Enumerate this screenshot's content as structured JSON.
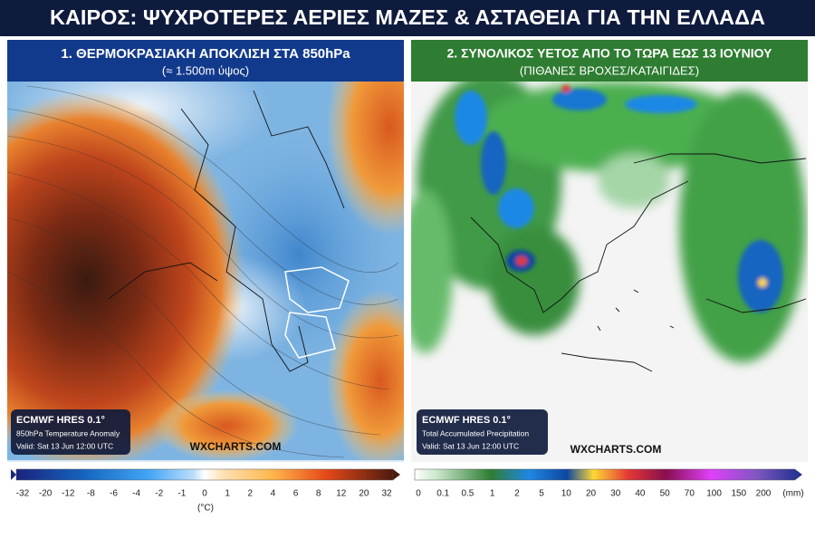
{
  "header": {
    "title": "ΚΑΙΡΟΣ: ΨΥΧΡΟΤΕΡΕΣ ΑΕΡΙΕΣ ΜΑΖΕΣ & ΑΣΤΑΘΕΙΑ ΓΙΑ ΤΗΝ ΕΛΛΑΔΑ"
  },
  "panels": [
    {
      "title": "1. ΘΕΡΜΟΚΡΑΣΙΑΚΗ ΑΠΟΚΛΙΣΗ ΣΤΑ 850hPa",
      "subtitle": "(≈ 1.500m ύψος)",
      "model": "ECMWF HRES 0.1°",
      "product": "850hPa Temperature Anomaly",
      "valid": "Valid: Sat 13 Jun 12:00 UTC",
      "source": "WXCHARTS.COM",
      "scale_labels": [
        "-32",
        "-20",
        "-12",
        "-8",
        "-6",
        "-4",
        "-2",
        "-1",
        "0",
        "1",
        "2",
        "4",
        "6",
        "8",
        "12",
        "20",
        "32"
      ],
      "unit": "(°C)"
    },
    {
      "title": "2. ΣΥΝΟΛΙΚΟΣ ΥΕΤΟΣ ΑΠΟ ΤΟ ΤΩΡΑ ΕΩΣ 13 ΙΟΥΝΙΟΥ",
      "subtitle": "(ΠΙΘΑΝΕΣ ΒΡΟΧΕΣ/ΚΑΤΑΙΓΙΔΕΣ)",
      "model": "ECMWF HRES 0.1°",
      "product": "Total Accumulated Precipitation",
      "valid": "Valid: Sat 13 Jun 12:00 UTC",
      "source": "WXCHARTS.COM",
      "scale_labels": [
        "0",
        "0.1",
        "0.5",
        "1",
        "2",
        "5",
        "10",
        "20",
        "30",
        "40",
        "50",
        "70",
        "100",
        "150",
        "200"
      ],
      "unit": "(mm)"
    }
  ]
}
